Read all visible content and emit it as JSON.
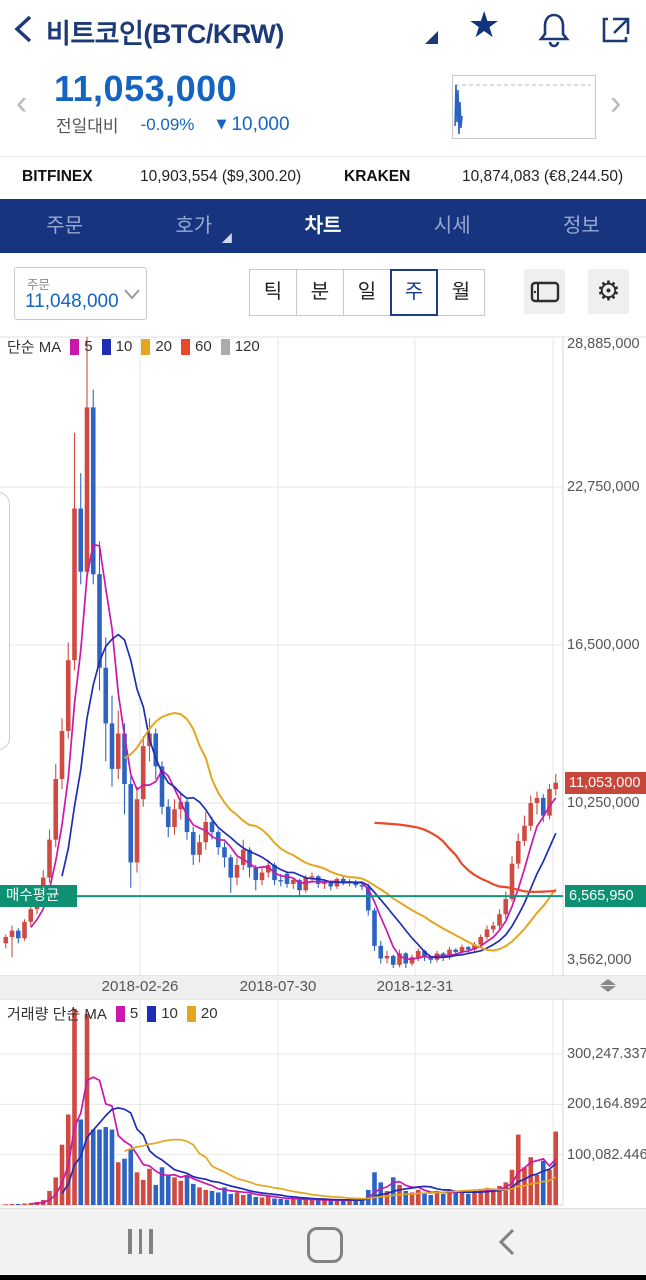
{
  "header": {
    "title": "비트코인(BTC/KRW)"
  },
  "price_panel": {
    "price": "11,053,000",
    "change_label": "전일대비",
    "change_percent": "-0.09%",
    "change_arrow": "▼",
    "change_amount": "10,000",
    "sparkline": [
      [
        2,
        50
      ],
      [
        3,
        9
      ],
      [
        4,
        46
      ],
      [
        5,
        14
      ],
      [
        6,
        58
      ],
      [
        7,
        26
      ],
      [
        8,
        52
      ],
      [
        9,
        40
      ]
    ]
  },
  "exchanges": [
    {
      "name": "BITFINEX",
      "value": "10,903,554 ($9,300.20)"
    },
    {
      "name": "KRAKEN",
      "value": "10,874,083 (€8,244.50)"
    }
  ],
  "tabs": [
    {
      "label": "주문"
    },
    {
      "label": "호가"
    },
    {
      "label": "차트"
    },
    {
      "label": "시세"
    },
    {
      "label": "정보"
    }
  ],
  "active_tab": "차트",
  "controls": {
    "order_label": "주문",
    "order_price": "11,048,000",
    "periods": [
      "틱",
      "분",
      "일",
      "주",
      "월"
    ],
    "selected_period": "주"
  },
  "chart_data": {
    "type": "candlestick",
    "interval": "weekly",
    "unit": "million KRW",
    "colors": {
      "up": "#cf4a42",
      "down": "#2d64c3",
      "grid": "#e7e7ea",
      "buy_avg": "#12947c"
    },
    "price_pane": {
      "legend_title": "단순 MA",
      "ma_series": [
        {
          "period": "5",
          "color": "#cc17ad"
        },
        {
          "period": "10",
          "color": "#1e2db4"
        },
        {
          "period": "20",
          "color": "#e3a61f"
        },
        {
          "period": "60",
          "color": "#e8492a"
        },
        {
          "period": "120",
          "color": "#ababab"
        }
      ],
      "y_labels": [
        {
          "text": "28,885,000",
          "value": 28.885
        },
        {
          "text": "22,750,000",
          "value": 22.75
        },
        {
          "text": "16,500,000",
          "value": 16.5
        },
        {
          "text": "10,250,000",
          "value": 10.25
        },
        {
          "text": "3,562,000",
          "value": 3.562
        }
      ],
      "grid_values": [
        22.75,
        16.5,
        10.25
      ],
      "x_labels": [
        "2018-02-26",
        "2018-07-30",
        "2018-12-31"
      ],
      "last_price": {
        "text": "11,053,000",
        "value": 11.053
      },
      "buy_average": {
        "label": "매수평균",
        "text": "6,565,950",
        "value": 6.56595
      },
      "candles": [
        [
          4.7,
          5.05,
          4.5,
          4.95
        ],
        [
          4.95,
          5.4,
          4.15,
          5.2
        ],
        [
          5.2,
          5.3,
          4.7,
          4.9
        ],
        [
          4.9,
          5.65,
          4.8,
          5.55
        ],
        [
          5.55,
          6.2,
          5.35,
          6.05
        ],
        [
          6.05,
          6.7,
          5.85,
          6.5
        ],
        [
          6.5,
          7.6,
          6.3,
          7.3
        ],
        [
          7.3,
          9.2,
          7.1,
          8.8
        ],
        [
          8.8,
          11.8,
          8.5,
          11.2
        ],
        [
          11.2,
          13.6,
          10.8,
          13.1
        ],
        [
          13.1,
          16.6,
          12.8,
          15.9
        ],
        [
          15.9,
          24.9,
          15.5,
          21.9
        ],
        [
          21.9,
          23.3,
          18.9,
          19.4
        ],
        [
          19.4,
          28.885,
          19.0,
          25.9
        ],
        [
          25.9,
          26.6,
          18.9,
          19.3
        ],
        [
          19.3,
          20.6,
          14.7,
          15.6
        ],
        [
          15.6,
          16.8,
          11.9,
          13.4
        ],
        [
          13.4,
          14.5,
          10.9,
          11.6
        ],
        [
          11.6,
          13.9,
          11.2,
          13.0
        ],
        [
          13.0,
          13.4,
          9.8,
          11.0
        ],
        [
          11.0,
          11.3,
          6.9,
          7.9
        ],
        [
          7.9,
          10.9,
          7.5,
          10.4
        ],
        [
          10.4,
          12.9,
          10.1,
          12.5
        ],
        [
          12.5,
          13.6,
          11.9,
          13.0
        ],
        [
          13.0,
          13.2,
          11.2,
          11.7
        ],
        [
          11.7,
          11.9,
          9.8,
          10.1
        ],
        [
          10.1,
          10.4,
          8.9,
          9.3
        ],
        [
          9.3,
          10.4,
          9.0,
          10.0
        ],
        [
          10.0,
          10.7,
          9.6,
          10.3
        ],
        [
          10.3,
          10.4,
          8.8,
          9.1
        ],
        [
          9.1,
          9.3,
          7.8,
          8.2
        ],
        [
          8.2,
          9.0,
          7.9,
          8.7
        ],
        [
          8.7,
          9.9,
          8.4,
          9.5
        ],
        [
          9.5,
          9.7,
          8.8,
          9.1
        ],
        [
          9.1,
          9.2,
          8.2,
          8.5
        ],
        [
          8.5,
          8.7,
          7.7,
          8.1
        ],
        [
          8.1,
          8.2,
          6.7,
          7.3
        ],
        [
          7.3,
          8.1,
          7.0,
          7.8
        ],
        [
          7.8,
          8.8,
          7.6,
          8.4
        ],
        [
          8.4,
          8.5,
          7.3,
          7.7
        ],
        [
          7.7,
          7.8,
          6.8,
          7.2
        ],
        [
          7.2,
          7.7,
          7.0,
          7.5
        ],
        [
          7.5,
          8.0,
          7.3,
          7.8
        ],
        [
          7.8,
          7.9,
          7.0,
          7.2
        ],
        [
          7.2,
          7.45,
          6.95,
          7.15
        ],
        [
          7.45,
          7.55,
          6.9,
          7.05
        ],
        [
          7.05,
          7.3,
          6.85,
          7.2
        ],
        [
          7.2,
          7.25,
          6.6,
          6.8
        ],
        [
          6.8,
          7.4,
          6.7,
          7.3
        ],
        [
          7.3,
          7.5,
          7.1,
          7.35
        ],
        [
          7.35,
          7.4,
          6.9,
          7.05
        ],
        [
          7.05,
          7.2,
          6.85,
          7.1
        ],
        [
          7.1,
          7.15,
          6.8,
          6.95
        ],
        [
          6.95,
          7.3,
          6.85,
          7.25
        ],
        [
          7.25,
          7.35,
          7.0,
          7.1
        ],
        [
          7.1,
          7.25,
          6.95,
          7.15
        ],
        [
          7.15,
          7.2,
          6.9,
          7.0
        ],
        [
          7.0,
          7.1,
          6.8,
          6.95
        ],
        [
          6.95,
          7.05,
          5.8,
          6.0
        ],
        [
          6.0,
          6.1,
          4.4,
          4.6
        ],
        [
          4.6,
          4.8,
          3.9,
          4.1
        ],
        [
          4.1,
          4.4,
          3.9,
          4.2
        ],
        [
          4.2,
          4.25,
          3.562,
          3.85
        ],
        [
          3.85,
          4.45,
          3.75,
          4.3
        ],
        [
          4.3,
          4.35,
          3.7,
          3.9
        ],
        [
          3.9,
          4.25,
          3.8,
          4.15
        ],
        [
          4.15,
          4.5,
          4.0,
          4.4
        ],
        [
          4.4,
          4.45,
          4.0,
          4.15
        ],
        [
          4.15,
          4.2,
          3.9,
          4.05
        ],
        [
          4.05,
          4.4,
          3.95,
          4.3
        ],
        [
          4.3,
          4.35,
          4.0,
          4.15
        ],
        [
          4.15,
          4.55,
          4.05,
          4.45
        ],
        [
          4.45,
          4.5,
          4.2,
          4.35
        ],
        [
          4.35,
          4.65,
          4.25,
          4.55
        ],
        [
          4.55,
          4.6,
          4.3,
          4.45
        ],
        [
          4.45,
          4.75,
          4.35,
          4.65
        ],
        [
          4.65,
          5.05,
          4.55,
          4.95
        ],
        [
          4.95,
          5.4,
          4.85,
          5.25
        ],
        [
          5.25,
          5.55,
          5.1,
          5.4
        ],
        [
          5.4,
          6.05,
          5.25,
          5.85
        ],
        [
          5.85,
          6.75,
          5.65,
          6.45
        ],
        [
          6.45,
          8.15,
          6.35,
          7.85
        ],
        [
          7.85,
          9.05,
          7.65,
          8.75
        ],
        [
          8.75,
          9.75,
          8.55,
          9.35
        ],
        [
          9.35,
          10.55,
          9.15,
          10.25
        ],
        [
          10.25,
          10.7,
          9.8,
          10.45
        ],
        [
          10.45,
          10.6,
          9.5,
          9.75
        ],
        [
          9.75,
          11.0,
          9.6,
          10.8
        ],
        [
          10.8,
          11.4,
          10.55,
          11.053
        ]
      ]
    },
    "volume_pane": {
      "legend_title": "거래량 단순 MA",
      "ma_series": [
        {
          "period": "5",
          "color": "#cc17ad"
        },
        {
          "period": "10",
          "color": "#1e2db4"
        },
        {
          "period": "20",
          "color": "#e3a61f"
        }
      ],
      "y_labels": [
        {
          "text": "300,247.337",
          "value": 300.247
        },
        {
          "text": "200,164.892",
          "value": 200.165
        },
        {
          "text": "100,082.446",
          "value": 100.082
        }
      ],
      "volumes": [
        1.5,
        2,
        2,
        3,
        4,
        6,
        10,
        28,
        55,
        120,
        180,
        390,
        170,
        380,
        150,
        150,
        155,
        150,
        85,
        92,
        110,
        65,
        50,
        72,
        40,
        75,
        58,
        55,
        48,
        58,
        42,
        35,
        30,
        28,
        25,
        35,
        22,
        25,
        20,
        22,
        16,
        15,
        17,
        13,
        12,
        11,
        13,
        11,
        10,
        11,
        9,
        10,
        9,
        10,
        9,
        9,
        10,
        12,
        30,
        65,
        45,
        28,
        55,
        40,
        28,
        25,
        30,
        24,
        20,
        28,
        22,
        30,
        24,
        28,
        22,
        26,
        30,
        34,
        30,
        38,
        45,
        70,
        140,
        75,
        95,
        60,
        88,
        70,
        146
      ]
    }
  },
  "nav_bar": {
    "recents": "recents",
    "home": "home",
    "back": "back"
  }
}
